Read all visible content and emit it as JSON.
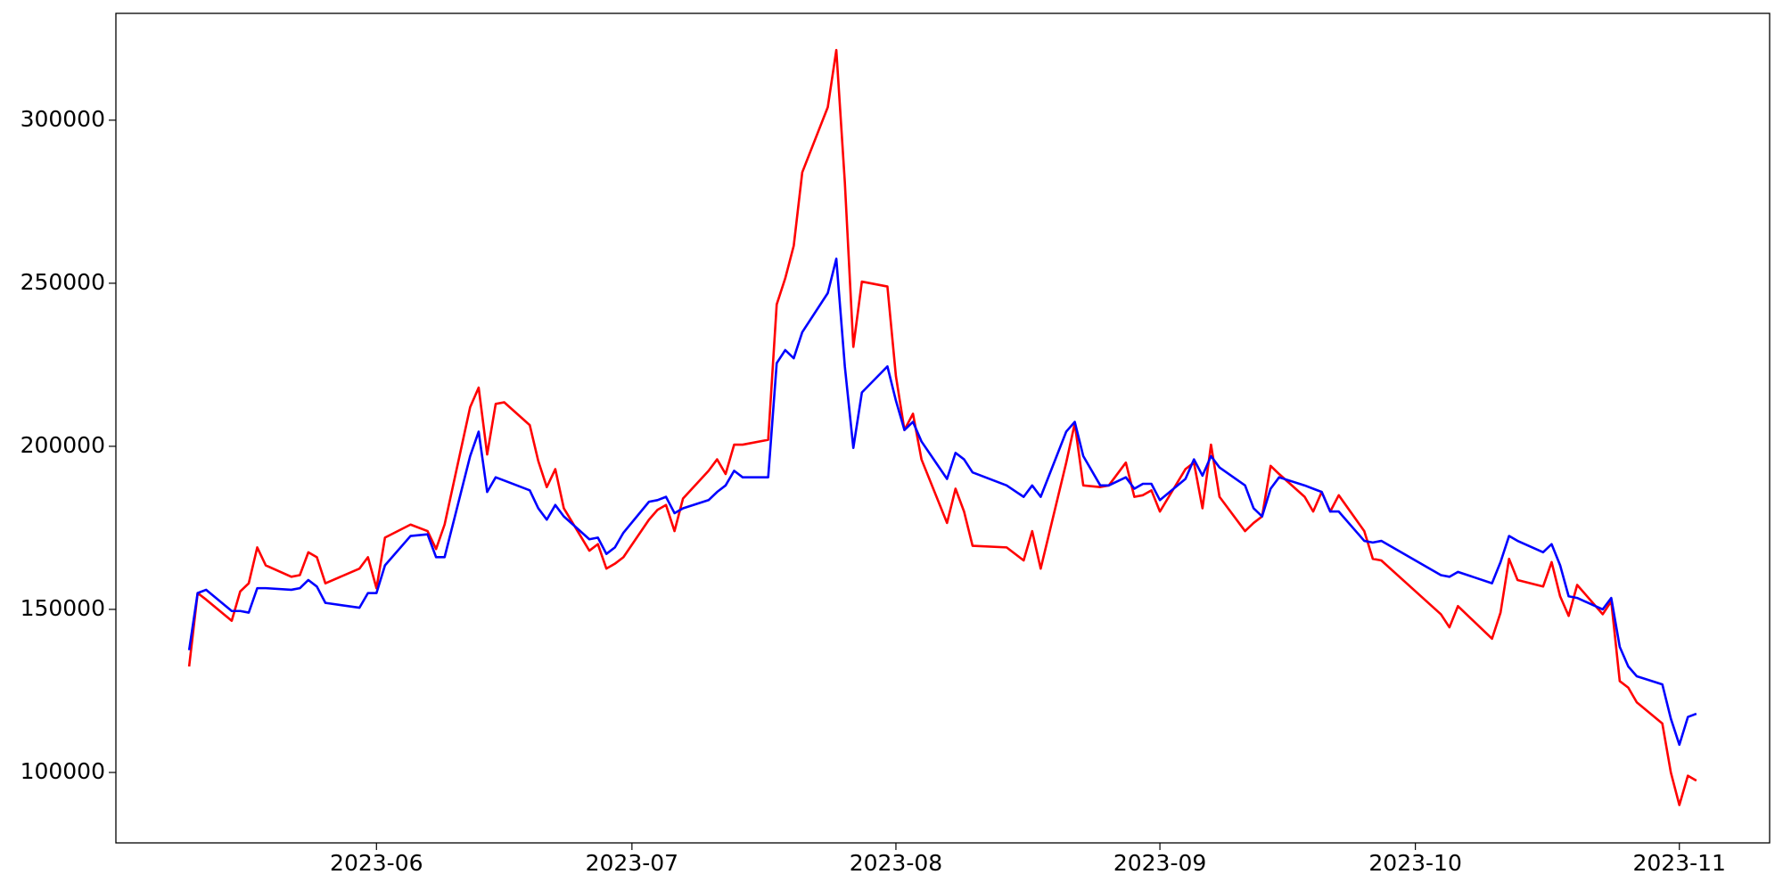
{
  "chart_data": {
    "type": "line",
    "x": [
      19487,
      19488,
      19489,
      19492,
      19493,
      19494,
      19495,
      19496,
      19499,
      19500,
      19501,
      19502,
      19503,
      19507,
      19508,
      19509,
      19510,
      19513,
      19515,
      19516,
      19517,
      19520,
      19521,
      19522,
      19523,
      19524,
      19527,
      19528,
      19529,
      19530,
      19531,
      19534,
      19535,
      19536,
      19537,
      19538,
      19541,
      19542,
      19543,
      19544,
      19545,
      19548,
      19549,
      19550,
      19551,
      19552,
      19555,
      19556,
      19557,
      19558,
      19559,
      19562,
      19563,
      19564,
      19565,
      19566,
      19569,
      19570,
      19571,
      19572,
      19573,
      19576,
      19577,
      19578,
      19579,
      19583,
      19585,
      19586,
      19587,
      19590,
      19591,
      19592,
      19594,
      19595,
      19597,
      19598,
      19599,
      19600,
      19601,
      19604,
      19605,
      19606,
      19607,
      19608,
      19611,
      19612,
      19613,
      19614,
      19615,
      19618,
      19619,
      19620,
      19621,
      19622,
      19625,
      19626,
      19627,
      19634,
      19635,
      19636,
      19640,
      19641,
      19642,
      19643,
      19646,
      19647,
      19648,
      19649,
      19650,
      19653,
      19654,
      19655,
      19656,
      19657,
      19660,
      19661,
      19662,
      19663,
      19664
    ],
    "series": [
      {
        "color": "#ff0000",
        "values": [
          132500,
          155000,
          153000,
          146500,
          155500,
          158000,
          169000,
          163500,
          160000,
          160500,
          167500,
          166000,
          158000,
          162500,
          166000,
          156500,
          172000,
          176000,
          174000,
          168500,
          176000,
          212000,
          218000,
          197500,
          213000,
          213500,
          206500,
          195500,
          187500,
          193000,
          181000,
          168000,
          170000,
          162500,
          164000,
          166000,
          177500,
          180500,
          182000,
          174000,
          184000,
          192500,
          196000,
          191500,
          200500,
          200500,
          202000,
          243500,
          251500,
          261500,
          284000,
          304000,
          321500,
          281000,
          230500,
          250500,
          249000,
          221500,
          205000,
          210000,
          196000,
          176500,
          187000,
          180000,
          169500,
          169000,
          165000,
          174000,
          162500,
          195000,
          207000,
          188000,
          187500,
          188000,
          195000,
          184500,
          185000,
          186500,
          180000,
          193000,
          195000,
          181000,
          200500,
          184500,
          174000,
          176500,
          178500,
          194000,
          191500,
          184500,
          180000,
          186000,
          180000,
          185000,
          174000,
          165500,
          165000,
          148500,
          144500,
          151000,
          141000,
          149000,
          165500,
          159000,
          157000,
          164500,
          154000,
          148000,
          157500,
          148500,
          152500,
          128000,
          126000,
          121500,
          115000,
          100000,
          90000,
          99000,
          97500
        ]
      },
      {
        "color": "#0000ff",
        "values": [
          137500,
          155000,
          156000,
          149500,
          149500,
          149000,
          156500,
          156500,
          156000,
          156500,
          159000,
          157000,
          152000,
          150500,
          155000,
          155000,
          163500,
          172500,
          173000,
          166000,
          166000,
          197000,
          204500,
          186000,
          190500,
          189500,
          186500,
          181000,
          177500,
          182000,
          178500,
          171500,
          172000,
          167000,
          169000,
          173500,
          183000,
          183500,
          184500,
          179500,
          181000,
          183500,
          186000,
          188000,
          192500,
          190500,
          190500,
          225500,
          229500,
          227000,
          235000,
          247000,
          257500,
          224500,
          199500,
          216500,
          224500,
          214000,
          205000,
          207500,
          201500,
          190000,
          198000,
          196000,
          192000,
          188000,
          184500,
          188000,
          184500,
          204500,
          207500,
          197000,
          188000,
          188000,
          190500,
          187000,
          188500,
          188500,
          183500,
          190000,
          196000,
          191000,
          197000,
          193500,
          188000,
          181000,
          178500,
          187000,
          190500,
          188000,
          187000,
          186000,
          180000,
          180000,
          171000,
          170500,
          171000,
          160500,
          160000,
          161500,
          158000,
          164500,
          172500,
          171000,
          167500,
          170000,
          163500,
          154000,
          153500,
          150000,
          153500,
          138500,
          132500,
          129500,
          127000,
          116500,
          108500,
          117000,
          118000
        ]
      }
    ],
    "xlim": [
      19478.4,
      19672.6
    ],
    "xticks": [
      {
        "value": 19509,
        "label": "2023-06"
      },
      {
        "value": 19539,
        "label": "2023-07"
      },
      {
        "value": 19570,
        "label": "2023-08"
      },
      {
        "value": 19601,
        "label": "2023-09"
      },
      {
        "value": 19631,
        "label": "2023-10"
      },
      {
        "value": 19662,
        "label": "2023-11"
      }
    ],
    "ylim": [
      78400,
      332750
    ],
    "yticks": [
      100000,
      150000,
      200000,
      250000,
      300000
    ]
  }
}
